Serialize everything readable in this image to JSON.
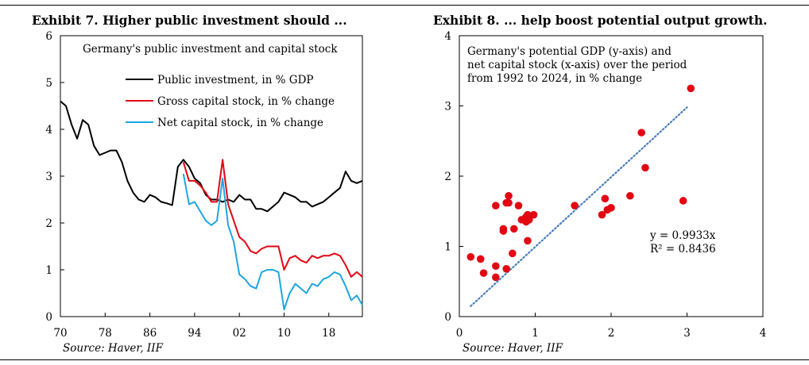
{
  "exhibit7": {
    "title": "Exhibit 7. Higher public investment should ...",
    "source": "Source: Haver, IIF"
  },
  "exhibit8": {
    "title": "Exhibit 8. ... help boost potential output growth.",
    "source": "Source: Haver, IIF"
  },
  "chart_data": [
    {
      "type": "line",
      "title": "Germany's public investment and capital stock",
      "xlabel": "",
      "ylabel": "",
      "xlim": [
        1970,
        2024
      ],
      "ylim": [
        0,
        6
      ],
      "x_ticks": [
        1970,
        1978,
        1986,
        1994,
        2002,
        2010,
        2018
      ],
      "x_tick_labels": [
        "70",
        "78",
        "86",
        "94",
        "02",
        "10",
        "18"
      ],
      "y_ticks": [
        0,
        1,
        2,
        3,
        4,
        5,
        6
      ],
      "grid": false,
      "legend_position": "top",
      "colors": {
        "public_investment": "#000000",
        "gross_capital": "#e30613",
        "net_capital": "#1ea7dd"
      },
      "series": [
        {
          "name": "Public investment, in % GDP",
          "color": "#000000",
          "x": [
            1970,
            1971,
            1972,
            1973,
            1974,
            1975,
            1976,
            1977,
            1978,
            1979,
            1980,
            1981,
            1982,
            1983,
            1984,
            1985,
            1986,
            1987,
            1988,
            1989,
            1990,
            1991,
            1992,
            1993,
            1994,
            1995,
            1996,
            1997,
            1998,
            1999,
            2000,
            2001,
            2002,
            2003,
            2004,
            2005,
            2006,
            2007,
            2008,
            2009,
            2010,
            2011,
            2012,
            2013,
            2014,
            2015,
            2016,
            2017,
            2018,
            2019,
            2020,
            2021,
            2022,
            2023,
            2024
          ],
          "values": [
            4.6,
            4.5,
            4.1,
            3.8,
            4.2,
            4.1,
            3.65,
            3.45,
            3.5,
            3.55,
            3.55,
            3.3,
            2.9,
            2.65,
            2.5,
            2.45,
            2.6,
            2.55,
            2.45,
            2.42,
            2.38,
            3.2,
            3.35,
            3.2,
            2.95,
            2.85,
            2.6,
            2.5,
            2.5,
            2.45,
            2.5,
            2.45,
            2.6,
            2.5,
            2.5,
            2.3,
            2.3,
            2.25,
            2.35,
            2.45,
            2.65,
            2.6,
            2.55,
            2.45,
            2.45,
            2.35,
            2.4,
            2.45,
            2.55,
            2.65,
            2.75,
            3.1,
            2.9,
            2.85,
            2.9
          ]
        },
        {
          "name": "Gross capital stock, in % change",
          "color": "#e30613",
          "x": [
            1992,
            1993,
            1994,
            1995,
            1996,
            1997,
            1998,
            1999,
            2000,
            2001,
            2002,
            2003,
            2004,
            2005,
            2006,
            2007,
            2008,
            2009,
            2010,
            2011,
            2012,
            2013,
            2014,
            2015,
            2016,
            2017,
            2018,
            2019,
            2020,
            2021,
            2022,
            2023,
            2024
          ],
          "values": [
            3.3,
            2.9,
            2.9,
            2.8,
            2.65,
            2.45,
            2.45,
            3.35,
            2.4,
            2.05,
            1.7,
            1.6,
            1.4,
            1.35,
            1.45,
            1.5,
            1.5,
            1.5,
            1.0,
            1.25,
            1.3,
            1.2,
            1.15,
            1.3,
            1.25,
            1.3,
            1.3,
            1.35,
            1.3,
            1.1,
            0.85,
            0.95,
            0.85
          ]
        },
        {
          "name": "Net capital stock, in % change",
          "color": "#1ea7dd",
          "x": [
            1992,
            1993,
            1994,
            1995,
            1996,
            1997,
            1998,
            1999,
            2000,
            2001,
            2002,
            2003,
            2004,
            2005,
            2006,
            2007,
            2008,
            2009,
            2010,
            2011,
            2012,
            2013,
            2014,
            2015,
            2016,
            2017,
            2018,
            2019,
            2020,
            2021,
            2022,
            2023,
            2024
          ],
          "values": [
            3.05,
            2.4,
            2.45,
            2.25,
            2.05,
            1.95,
            2.05,
            2.95,
            1.95,
            1.6,
            0.9,
            0.8,
            0.65,
            0.6,
            0.95,
            1.0,
            1.0,
            0.95,
            0.15,
            0.5,
            0.7,
            0.6,
            0.5,
            0.7,
            0.65,
            0.8,
            0.85,
            0.95,
            0.9,
            0.65,
            0.35,
            0.45,
            0.25
          ]
        }
      ]
    },
    {
      "type": "scatter",
      "title": "Germany's potential GDP (y-axis) and net capital stock (x-axis) over the period from 1992 to 2024, in % change",
      "title_lines": [
        "Germany's potential GDP (y-axis) and",
        "net capital stock (x-axis) over the period",
        "from 1992 to 2024, in % change"
      ],
      "xlabel": "",
      "ylabel": "",
      "xlim": [
        0,
        4
      ],
      "ylim": [
        0,
        4
      ],
      "x_ticks": [
        0,
        1,
        2,
        3,
        4
      ],
      "y_ticks": [
        0,
        1,
        2,
        3,
        4
      ],
      "grid": false,
      "point_color": "#e30613",
      "trend_color": "#4a7ebb",
      "trendline": {
        "slope": 0.9933,
        "x_range": [
          0.15,
          3.0
        ]
      },
      "annotations": [
        "y = 0.9933x",
        "R² = 0.8436"
      ],
      "points": [
        [
          0.15,
          0.85
        ],
        [
          0.28,
          0.82
        ],
        [
          0.32,
          0.62
        ],
        [
          0.48,
          0.72
        ],
        [
          0.48,
          0.56
        ],
        [
          0.48,
          1.58
        ],
        [
          0.58,
          1.25
        ],
        [
          0.58,
          1.22
        ],
        [
          0.62,
          1.62
        ],
        [
          0.62,
          0.68
        ],
        [
          0.65,
          1.72
        ],
        [
          0.65,
          1.62
        ],
        [
          0.7,
          0.9
        ],
        [
          0.72,
          1.25
        ],
        [
          0.78,
          1.58
        ],
        [
          0.82,
          1.38
        ],
        [
          0.88,
          1.42
        ],
        [
          0.88,
          1.35
        ],
        [
          0.9,
          1.45
        ],
        [
          0.92,
          1.38
        ],
        [
          0.9,
          1.08
        ],
        [
          0.98,
          1.45
        ],
        [
          1.52,
          1.58
        ],
        [
          1.88,
          1.45
        ],
        [
          1.92,
          1.68
        ],
        [
          1.95,
          1.52
        ],
        [
          2.0,
          1.55
        ],
        [
          2.25,
          1.72
        ],
        [
          2.4,
          2.62
        ],
        [
          2.45,
          2.12
        ],
        [
          2.95,
          1.65
        ],
        [
          3.05,
          3.25
        ]
      ]
    }
  ]
}
